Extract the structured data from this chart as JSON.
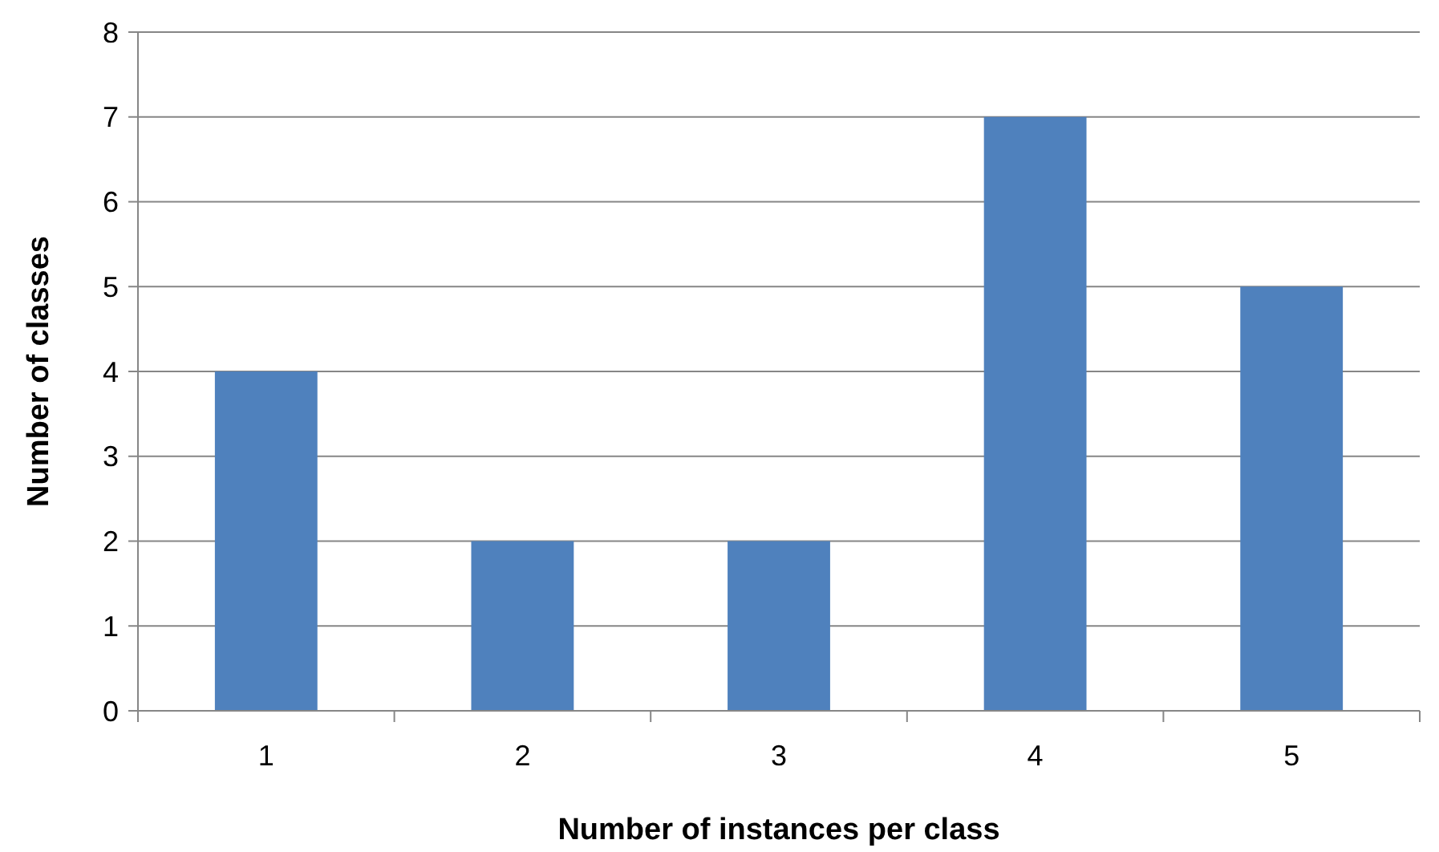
{
  "chart_data": {
    "type": "bar",
    "xlabel": "Number of instances per class",
    "ylabel": "Number of classes",
    "categories": [
      "1",
      "2",
      "3",
      "4",
      "5"
    ],
    "values": [
      4,
      2,
      2,
      7,
      5
    ],
    "color": "#4f81bd",
    "ylim": [
      0,
      8
    ],
    "yticks": [
      0,
      1,
      2,
      3,
      4,
      5,
      6,
      7,
      8
    ],
    "grid": "y"
  }
}
